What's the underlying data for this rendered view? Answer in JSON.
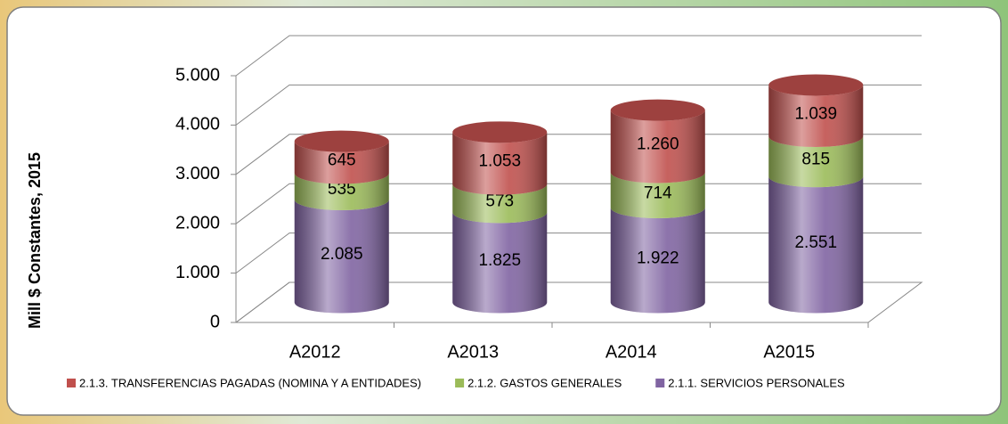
{
  "chart_data": {
    "type": "bar3d_stacked",
    "ylabel": "Mill $ Constantes, 2015",
    "categories": [
      "A2012",
      "A2013",
      "A2014",
      "A2015"
    ],
    "series": [
      {
        "name": "2.1.1. SERVICIOS PERSONALES",
        "color": "#8064a2",
        "values": [
          2085,
          1825,
          1922,
          2551
        ],
        "value_labels": [
          "2.085",
          "1.825",
          "1.922",
          "2.551"
        ]
      },
      {
        "name": "2.1.2. GASTOS GENERALES",
        "color": "#9bbb59",
        "values": [
          535,
          573,
          714,
          815
        ],
        "value_labels": [
          "535",
          "573",
          "714",
          "815"
        ]
      },
      {
        "name": "2.1.3. TRANSFERENCIAS PAGADAS (NOMINA Y A ENTIDADES)",
        "color": "#c0504d",
        "values": [
          645,
          1053,
          1260,
          1039
        ],
        "value_labels": [
          "645",
          "1.053",
          "1.260",
          "1.039"
        ]
      }
    ],
    "legend_order": [
      2,
      1,
      0
    ],
    "ylim": [
      0,
      5000
    ],
    "yticks": [
      0,
      {
        "value": 1000,
        "label": "1.000"
      },
      {
        "value": 2000,
        "label": "2.000"
      },
      {
        "value": 3000,
        "label": "3.000"
      },
      {
        "value": 4000,
        "label": "4.000"
      },
      {
        "value": 5000,
        "label": "5.000"
      }
    ],
    "grid": true
  }
}
